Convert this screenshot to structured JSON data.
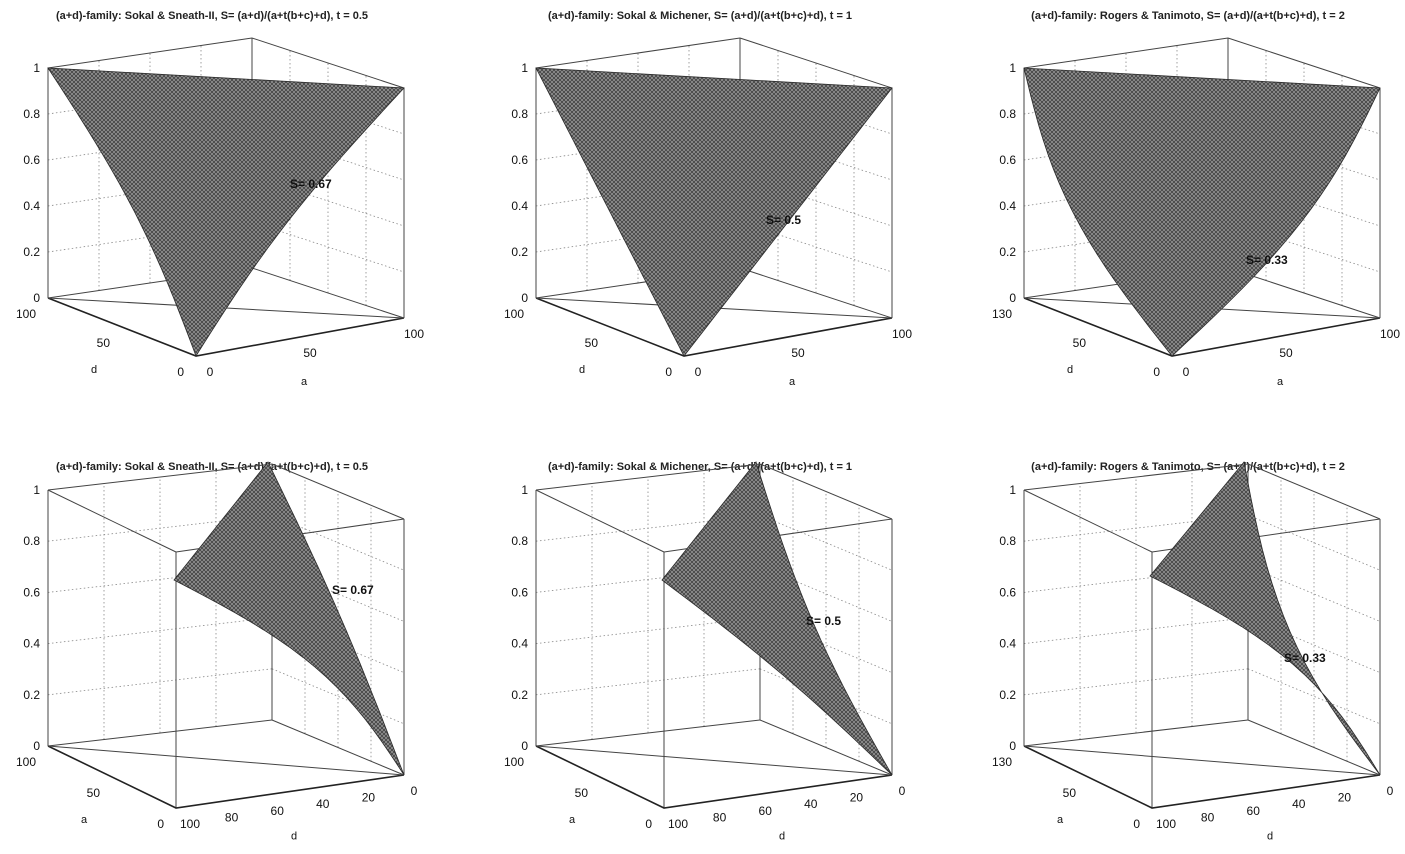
{
  "chart_data": [
    {
      "type": "surface",
      "view": "front",
      "title": "(a+d)-family: Sokal & Sneath-II, S= (a+d)/(a+t(b+c)+d), t = 0.5",
      "t": 0.5,
      "contour_label": "S= 0.67",
      "contour_value": 0.67,
      "xlabel": "d",
      "ylabel": "a",
      "x_ticks": [
        "100",
        "50",
        "0"
      ],
      "y_ticks": [
        "0",
        "50",
        "100"
      ],
      "z_ticks": [
        "0",
        "0.2",
        "0.4",
        "0.6",
        "0.8",
        "1"
      ],
      "zlim": [
        0,
        1
      ]
    },
    {
      "type": "surface",
      "view": "front",
      "title": "(a+d)-family: Sokal & Michener, S= (a+d)/(a+t(b+c)+d), t = 1",
      "t": 1,
      "contour_label": "S= 0.5",
      "contour_value": 0.5,
      "xlabel": "d",
      "ylabel": "a",
      "x_ticks": [
        "100",
        "50",
        "0"
      ],
      "y_ticks": [
        "0",
        "50",
        "100"
      ],
      "z_ticks": [
        "0",
        "0.2",
        "0.4",
        "0.6",
        "0.8",
        "1"
      ],
      "zlim": [
        0,
        1
      ]
    },
    {
      "type": "surface",
      "view": "front",
      "title": "(a+d)-family: Rogers & Tanimoto, S= (a+d)/(a+t(b+c)+d), t = 2",
      "t": 2,
      "contour_label": "S= 0.33",
      "contour_value": 0.33,
      "xlabel": "d",
      "ylabel": "a",
      "x_ticks": [
        "130",
        "50",
        "0"
      ],
      "y_ticks": [
        "0",
        "50",
        "100"
      ],
      "z_ticks": [
        "0",
        "0.2",
        "0.4",
        "0.6",
        "0.8",
        "1"
      ],
      "zlim": [
        0,
        1
      ]
    },
    {
      "type": "surface",
      "view": "side",
      "title": "(a+d)-family: Sokal & Sneath-II, S= (a+d)/(a+t(b+c)+d), t = 0.5",
      "t": 0.5,
      "contour_label": "S= 0.67",
      "contour_value": 0.67,
      "xlabel": "a",
      "ylabel": "d",
      "x_ticks": [
        "100",
        "50",
        "0"
      ],
      "y_ticks": [
        "100",
        "80",
        "60",
        "40",
        "20",
        "0"
      ],
      "z_ticks": [
        "0",
        "0.2",
        "0.4",
        "0.6",
        "0.8",
        "1"
      ],
      "zlim": [
        0,
        1
      ]
    },
    {
      "type": "surface",
      "view": "side",
      "title": "(a+d)-family: Sokal & Michener, S= (a+d)/(a+t(b+c)+d), t = 1",
      "t": 1,
      "contour_label": "S= 0.5",
      "contour_value": 0.5,
      "xlabel": "a",
      "ylabel": "d",
      "x_ticks": [
        "100",
        "50",
        "0"
      ],
      "y_ticks": [
        "100",
        "80",
        "60",
        "40",
        "20",
        "0"
      ],
      "z_ticks": [
        "0",
        "0.2",
        "0.4",
        "0.6",
        "0.8",
        "1"
      ],
      "zlim": [
        0,
        1
      ]
    },
    {
      "type": "surface",
      "view": "side",
      "title": "(a+d)-family: Rogers & Tanimoto, S= (a+d)/(a+t(b+c)+d), t = 2",
      "t": 2,
      "contour_label": "S= 0.33",
      "contour_value": 0.33,
      "xlabel": "a",
      "ylabel": "d",
      "x_ticks": [
        "130",
        "50",
        "0"
      ],
      "y_ticks": [
        "100",
        "80",
        "60",
        "40",
        "20",
        "0"
      ],
      "z_ticks": [
        "0",
        "0.2",
        "0.4",
        "0.6",
        "0.8",
        "1"
      ],
      "zlim": [
        0,
        1
      ]
    }
  ],
  "colors": {
    "surface_fill": "#8d8d8d",
    "mesh_line": "#2a2a2a",
    "box_line": "#444444",
    "grid_line": "#888888"
  }
}
